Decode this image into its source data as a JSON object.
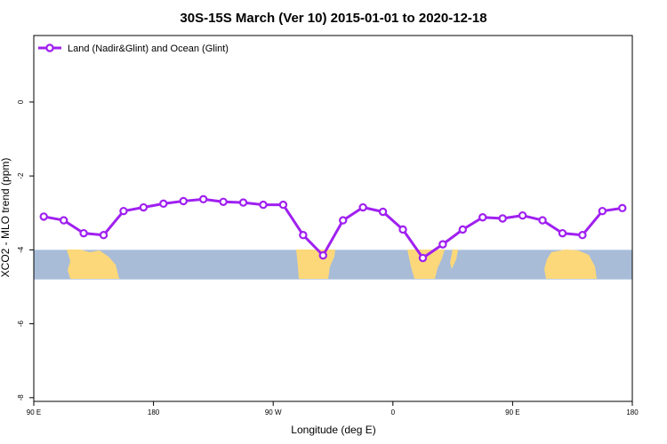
{
  "chart_data": {
    "type": "line",
    "title": "30S-15S March (Ver 10)   2015-01-01 to 2020-12-18",
    "xlabel": "Longitude (deg E)",
    "ylabel": "XCO2 - MLO trend (ppm)",
    "x_ticks": [
      {
        "value": 90,
        "label": "90 E"
      },
      {
        "value": 180,
        "label": "180"
      },
      {
        "value": 270,
        "label": "90 W"
      },
      {
        "value": 360,
        "label": "0"
      },
      {
        "value": 450,
        "label": "90 E"
      },
      {
        "value": 540,
        "label": "180"
      }
    ],
    "y_ticks": [
      0,
      -2,
      -4,
      -6,
      -8
    ],
    "xlim": [
      90,
      540
    ],
    "ylim": [
      -8.1,
      1.8
    ],
    "grid": false,
    "legend_position": "top-left",
    "series": [
      {
        "name": "Land (Nadir&Glint) and Ocean (Glint)",
        "color": "#a020f0",
        "marker": "open-circle",
        "x": [
          97.5,
          112.5,
          127.5,
          142.5,
          157.5,
          172.5,
          187.5,
          202.5,
          217.5,
          232.5,
          247.5,
          262.5,
          277.5,
          292.5,
          307.5,
          322.5,
          337.5,
          352.5,
          367.5,
          382.5,
          397.5,
          412.5,
          427.5,
          442.5,
          457.5,
          472.5,
          487.5,
          502.5,
          517.5,
          532.5
        ],
        "values": [
          -3.1,
          -3.2,
          -3.55,
          -3.6,
          -2.95,
          -2.85,
          -2.75,
          -2.68,
          -2.63,
          -2.7,
          -2.72,
          -2.78,
          -2.78,
          -3.6,
          -4.15,
          -3.2,
          -2.85,
          -2.97,
          -3.45,
          -4.22,
          -3.85,
          -3.45,
          -3.12,
          -3.15,
          -3.07,
          -3.2,
          -3.55,
          -3.6,
          -2.95,
          -2.87
        ]
      }
    ],
    "map_strip": {
      "y_range": [
        -4.0,
        -4.8
      ],
      "ocean_color": "#a8bcd8",
      "land_color": "#fcd87a"
    }
  }
}
